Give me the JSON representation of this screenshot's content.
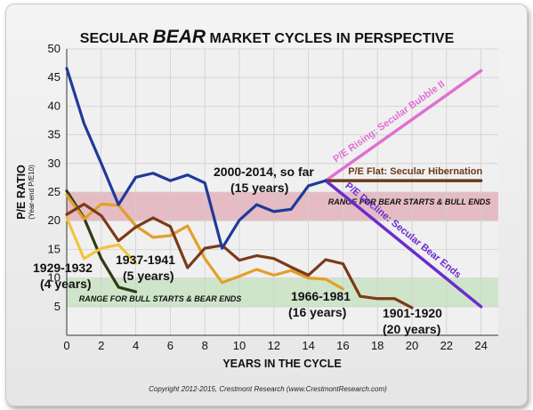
{
  "title_pre": "SECULAR",
  "title_em": "BEAR",
  "title_post": "MARKET CYCLES IN PERSPECTIVE",
  "copyright": "Copyright 2012-2015, Crestmont Research (www.CrestmontResearch.com)",
  "colors": {
    "background": "#f0f0f0",
    "band_high": "#e3b3bb",
    "band_low": "#c9e3c3",
    "1929": "#2f3b13",
    "1937": "#f2c53e",
    "1966": "#e39f27",
    "1901": "#7a3a1a",
    "2000": "#1f3a9a",
    "rising": "#e070d2",
    "flat": "#6b3a1a",
    "decline": "#6a2bcf"
  },
  "chart_data": {
    "type": "line",
    "xlabel": "YEARS IN THE CYCLE",
    "ylabel": "P/E RATIO",
    "ylabel_sub": "(Year-end P/E10)",
    "xlim": [
      0,
      25
    ],
    "ylim": [
      0,
      50
    ],
    "xticks": [
      "0",
      "2",
      "4",
      "6",
      "8",
      "10",
      "12",
      "14",
      "16",
      "18",
      "20",
      "22",
      "24"
    ],
    "yticks": [
      "5",
      "10",
      "15",
      "20",
      "25",
      "30",
      "35",
      "40",
      "45",
      "50"
    ],
    "grid": true,
    "bands": [
      {
        "label": "RANGE FOR BEAR STARTS & BULL ENDS",
        "y0": 20,
        "y1": 25
      },
      {
        "label": "RANGE FOR BULL STARTS & BEAR ENDS",
        "y0": 5,
        "y1": 10
      }
    ],
    "series": [
      {
        "key": "1929",
        "name": "1929-1932",
        "sub": "(4 years)",
        "x": [
          0,
          1,
          2,
          3,
          4
        ],
        "y": [
          25.2,
          20.5,
          13.4,
          8.4,
          7.6
        ]
      },
      {
        "key": "1937",
        "name": "1937-1941",
        "sub": "(5 years)",
        "x": [
          0,
          1,
          2,
          3,
          4
        ],
        "y": [
          20.5,
          13.4,
          15.2,
          15.8,
          12.6
        ]
      },
      {
        "key": "1966",
        "name": "1966-1981",
        "sub": "(16 years)",
        "x": [
          0,
          1,
          2,
          3,
          4,
          5,
          6,
          7,
          8,
          9,
          10,
          11,
          12,
          13,
          14,
          15,
          16
        ],
        "y": [
          24.5,
          20.3,
          22.9,
          22.7,
          19.1,
          17.1,
          17.4,
          19.1,
          13.4,
          9.2,
          10.3,
          11.5,
          10.5,
          11.3,
          10.0,
          9.8,
          8.1
        ]
      },
      {
        "key": "1901",
        "name": "1901-1920",
        "sub": "(20 years)",
        "x": [
          0,
          1,
          2,
          3,
          4,
          5,
          6,
          7,
          8,
          9,
          10,
          11,
          12,
          13,
          14,
          15,
          16,
          17,
          18,
          19,
          20
        ],
        "y": [
          21.1,
          22.9,
          20.9,
          16.5,
          18.9,
          20.5,
          19.0,
          11.8,
          15.2,
          15.7,
          13.1,
          13.9,
          13.4,
          11.9,
          10.5,
          13.2,
          12.5,
          6.8,
          6.4,
          6.4,
          4.8
        ]
      },
      {
        "key": "2000",
        "name": "2000-2014, so far",
        "sub": "(15 years)",
        "x": [
          0,
          1,
          2,
          3,
          4,
          5,
          6,
          7,
          8,
          9,
          10,
          11,
          12,
          13,
          14,
          15
        ],
        "y": [
          46.6,
          37.0,
          30.0,
          22.8,
          27.6,
          28.3,
          27.0,
          28.0,
          26.6,
          15.2,
          20.1,
          22.8,
          21.6,
          22.0,
          26.1,
          27.0
        ]
      }
    ],
    "projections": [
      {
        "key": "rising",
        "name": "P/E Rising: Secular Bubble II",
        "x": [
          15,
          24
        ],
        "y": [
          27.0,
          46.2
        ]
      },
      {
        "key": "flat",
        "name": "P/E Flat: Secular Hibernation",
        "x": [
          15,
          24
        ],
        "y": [
          27.0,
          27.0
        ]
      },
      {
        "key": "decline",
        "name": "P/E Decline: Secular Bear Ends",
        "x": [
          15,
          24
        ],
        "y": [
          27.0,
          5.0
        ]
      }
    ]
  }
}
